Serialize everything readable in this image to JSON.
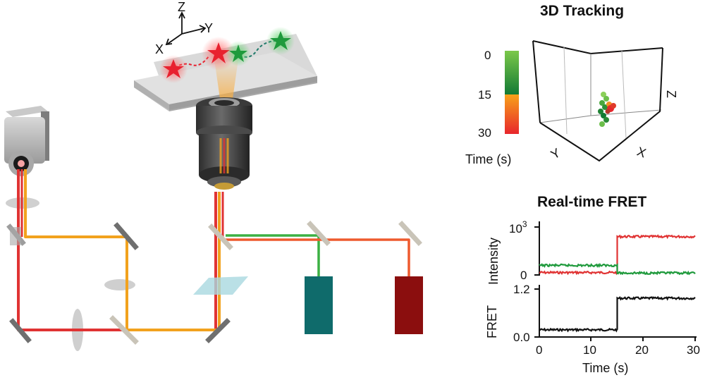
{
  "setup": {
    "axes_labels": {
      "z": "Z",
      "y": "Y",
      "x": "X"
    },
    "beam_colors": {
      "red": "#e03333",
      "orange": "#f2a21e",
      "green": "#3cb043",
      "red_orange": "#ee5a2e"
    },
    "detector_colors": {
      "green_channel": "#0f6b6b",
      "red_channel": "#8b0e0e"
    },
    "star_colors": {
      "red": "#e8212f",
      "green": "#1f9a3c"
    }
  },
  "tracking": {
    "title": "3D Tracking",
    "axis_labels": {
      "x": "X",
      "y": "Y",
      "z": "Z"
    },
    "colorbar": {
      "label": "Time (s)",
      "ticks": [
        "0",
        "15",
        "30"
      ],
      "gradient_top": [
        "#7cc84a",
        "#127a34"
      ],
      "gradient_bottom": [
        "#f7a21a",
        "#e8262c"
      ]
    }
  },
  "fret": {
    "title": "Real-time FRET",
    "intensity_ylabel": "Intensity",
    "fret_ylabel": "FRET",
    "xlabel": "Time (s)",
    "intensity_ticks": {
      "top": "10",
      "top_exp": "3",
      "bottom": "0"
    },
    "fret_ticks": [
      "1.2",
      "0.0"
    ],
    "x_ticks": [
      "0",
      "10",
      "20",
      "30"
    ]
  },
  "chart_data": [
    {
      "type": "line",
      "x": [
        0,
        15,
        15,
        30
      ],
      "series": [
        {
          "color": "#e03333",
          "values": [
            50,
            50,
            800,
            800
          ]
        },
        {
          "color": "#1f9a3c",
          "values": [
            200,
            200,
            40,
            40
          ]
        }
      ],
      "ylabel": "Intensity",
      "xlim": [
        0,
        30
      ],
      "ylim": [
        0,
        1000
      ]
    },
    {
      "type": "line",
      "x": [
        0,
        15,
        15,
        30
      ],
      "series": [
        {
          "color": "#111111",
          "values": [
            0.18,
            0.18,
            0.97,
            0.97
          ]
        }
      ],
      "ylabel": "FRET",
      "xlabel": "Time (s)",
      "xlim": [
        0,
        30
      ],
      "ylim": [
        0,
        1.2
      ]
    }
  ]
}
